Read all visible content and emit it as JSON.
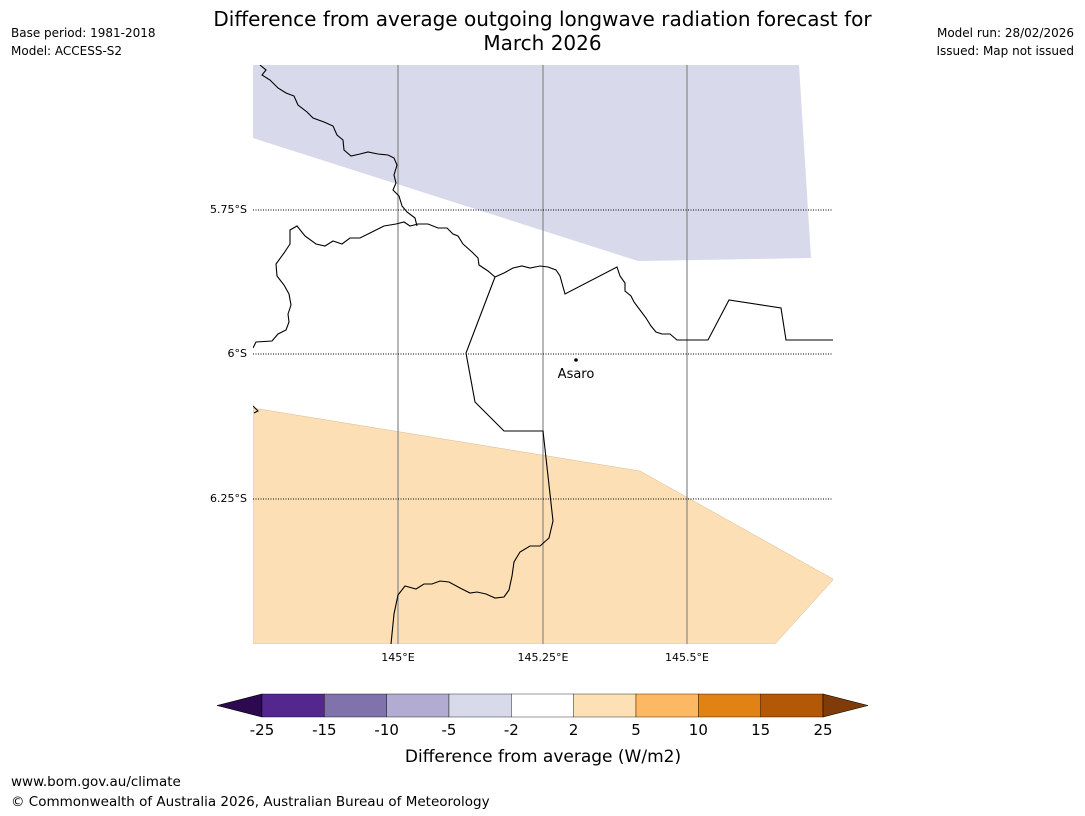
{
  "title": {
    "line1": "Difference from average outgoing longwave radiation forecast for",
    "line2": "March 2026"
  },
  "meta_left": {
    "base_period": "Base period: 1981-2018",
    "model": "Model: ACCESS-S2"
  },
  "meta_right": {
    "model_run": "Model run: 28/02/2026",
    "issued": "Issued: Map not issued"
  },
  "map": {
    "lat_labels": [
      "5.75°S",
      "6°S",
      "6.25°S"
    ],
    "lon_labels": [
      "145°E",
      "145.25°E",
      "145.5°E"
    ],
    "place": {
      "name": "Asaro"
    },
    "region_colors": {
      "negative_-5_-2": "#d8d9ea",
      "positive_2_5": "#fddfb5"
    }
  },
  "colorbar": {
    "ticks": [
      "-25",
      "-15",
      "-10",
      "-5",
      "-2",
      "2",
      "5",
      "10",
      "15",
      "25"
    ],
    "colors": [
      "#2d0a4f",
      "#54278f",
      "#8073ac",
      "#b2abd2",
      "#d8daeb",
      "#ffffff",
      "#fee0b6",
      "#fdb863",
      "#e08214",
      "#b35806",
      "#7f3b08"
    ],
    "label": "Difference from average (W/m2)"
  },
  "footer": {
    "url": "www.bom.gov.au/climate",
    "copyright": "© Commonwealth of Australia 2026, Australian Bureau of Meteorology"
  }
}
